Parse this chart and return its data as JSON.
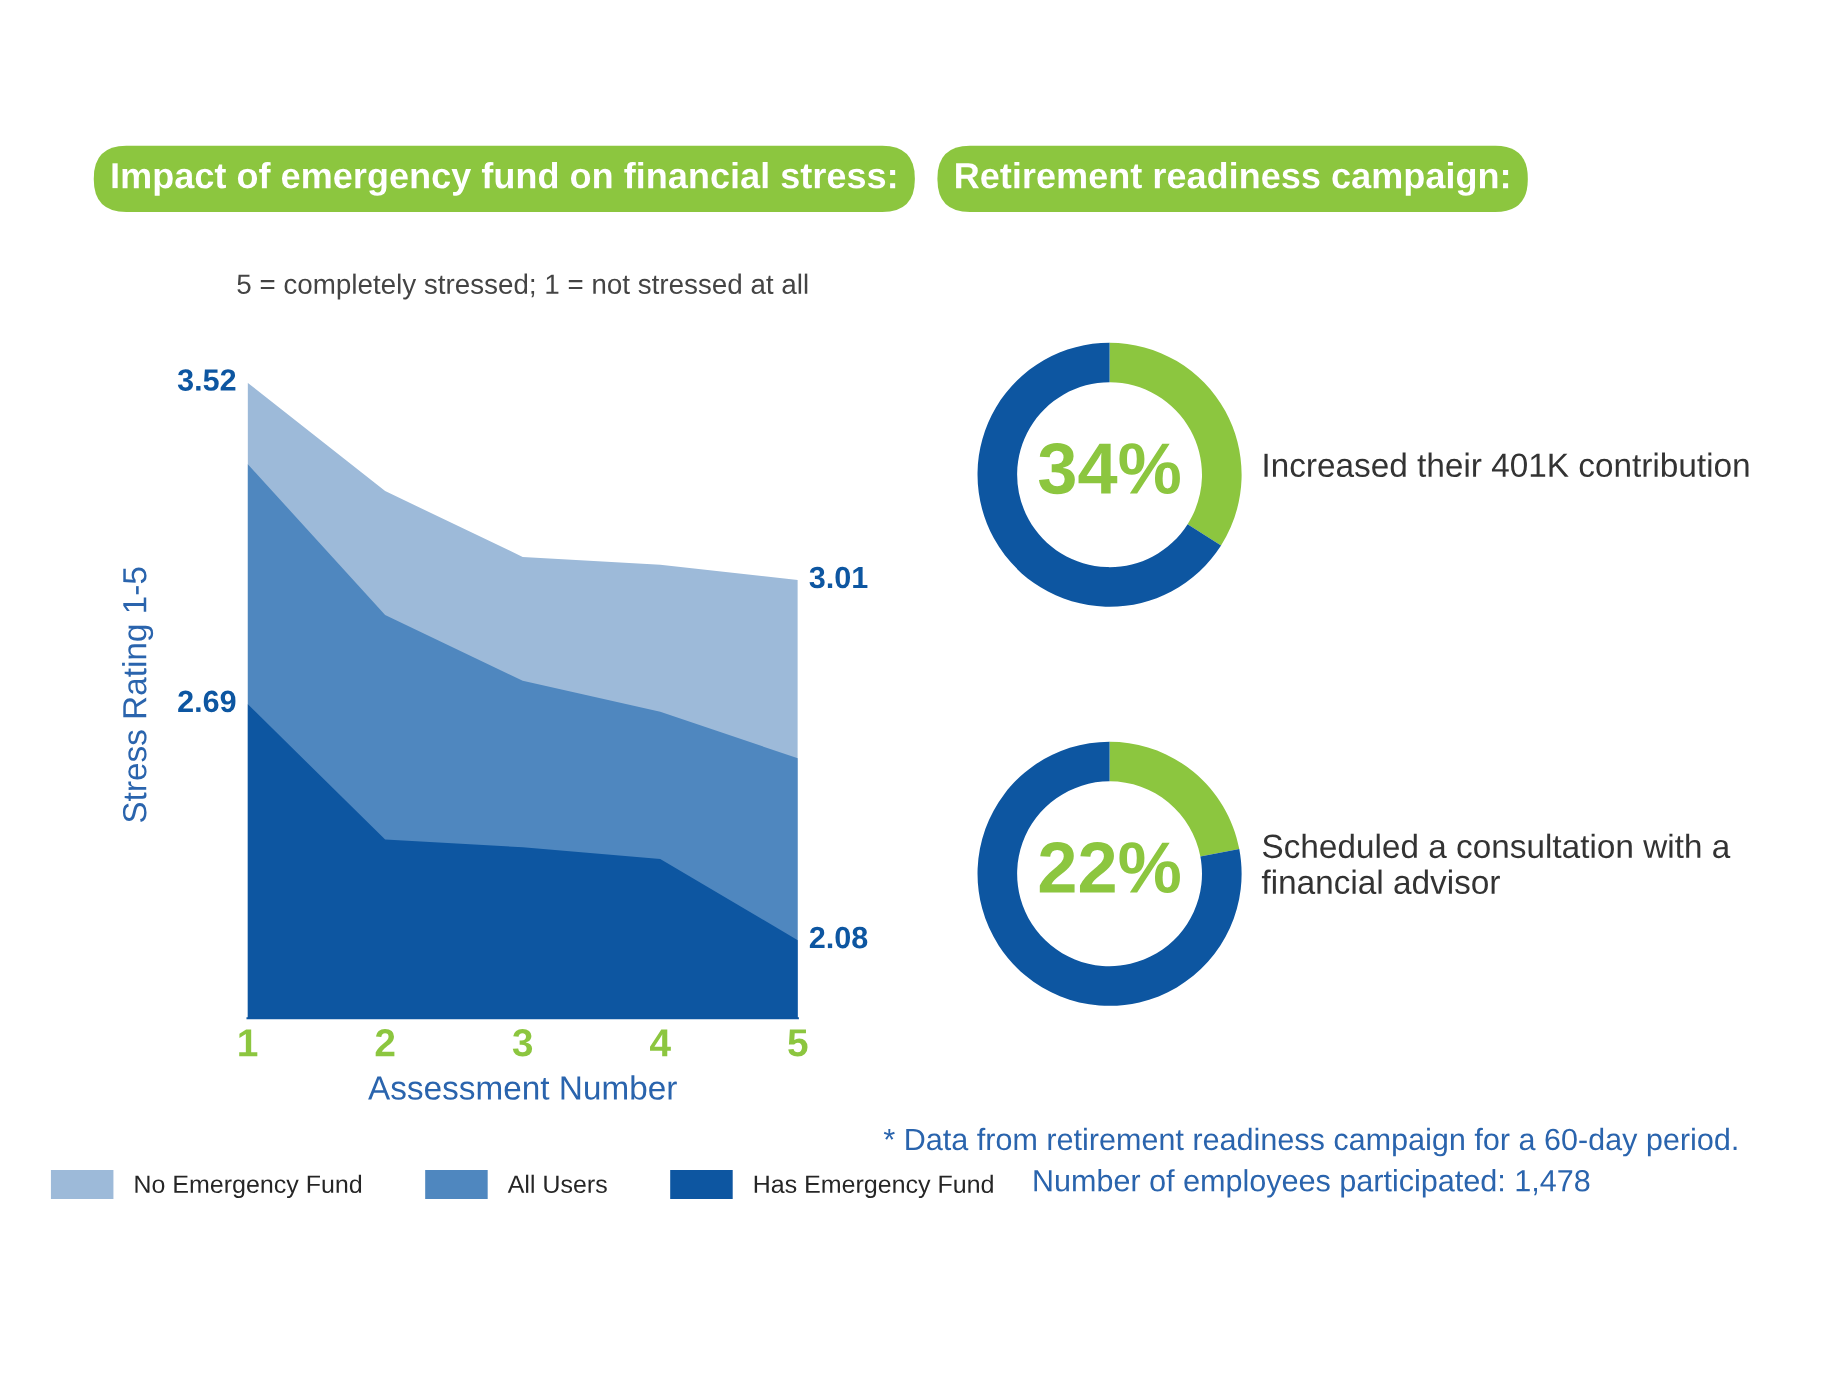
{
  "chart_data": [
    {
      "type": "area",
      "title": "Impact of emergency fund on financial stress:",
      "subtitle": "5 = completely stressed; 1 = not stressed at all",
      "xlabel": "Assessment Number",
      "ylabel": "Stress Rating 1-5",
      "x": [
        1,
        2,
        3,
        4,
        5
      ],
      "xlim": [
        1,
        5
      ],
      "xticks": [
        1,
        2,
        3,
        4,
        5
      ],
      "tick_labels": "x",
      "grid": false,
      "legend": "bottom",
      "series": [
        {
          "name": "No Emergency Fund",
          "color": "#9dbad9",
          "values": [
            3.52,
            3.24,
            3.07,
            3.05,
            3.01
          ],
          "value_labels": [
            "3.52",
            null,
            null,
            null,
            "3.01"
          ]
        },
        {
          "name": "All Users",
          "color": "#4f87bf",
          "values": [
            3.31,
            2.92,
            2.75,
            2.67,
            2.55
          ]
        },
        {
          "name": "Has Emergency Fund",
          "color": "#0d56a1",
          "values": [
            2.69,
            2.34,
            2.32,
            2.29,
            2.08
          ],
          "value_labels": [
            "2.69",
            null,
            null,
            null,
            "2.08"
          ]
        }
      ]
    },
    {
      "type": "donut",
      "title": "Retirement readiness campaign:",
      "categories": [
        "Increased their 401K contribution",
        null
      ],
      "values": [
        34,
        66
      ],
      "colors": [
        "#8cc63f",
        "#0d56a1"
      ],
      "value_labels": [
        "34%",
        null
      ]
    },
    {
      "type": "donut",
      "categories": [
        "Scheduled a consultation with a financial advisor",
        null
      ],
      "values": [
        22,
        78
      ],
      "colors": [
        "#8cc63f",
        "#0d56a1"
      ],
      "value_labels": [
        "22%",
        null
      ],
      "annotations": [
        "* Data from retirement readiness campaign for a 60-day period.",
        "Number of employees participated: 1,478"
      ]
    }
  ]
}
